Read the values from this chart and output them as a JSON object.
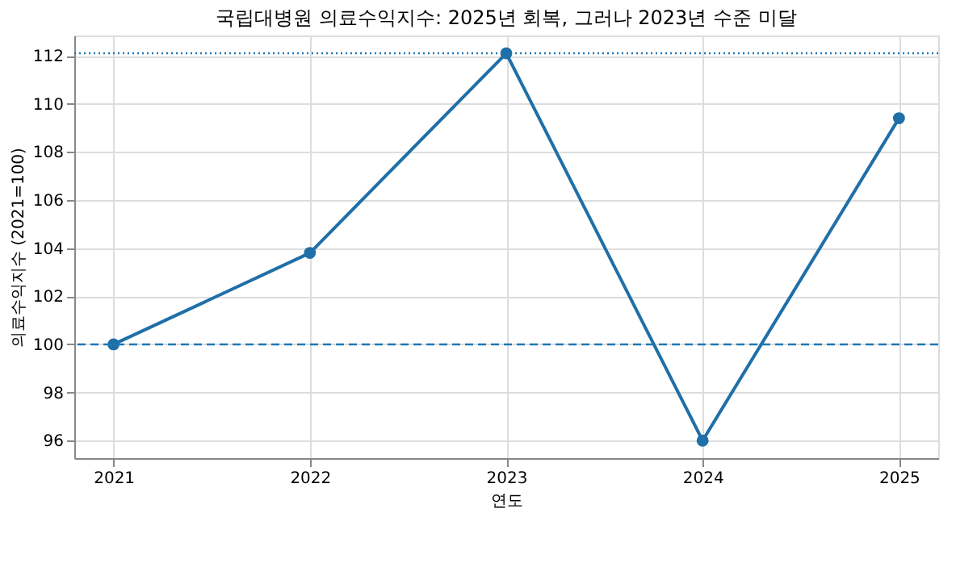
{
  "chart_data": {
    "type": "line",
    "title": "국립대병원 의료수익지수: 2025년 회복, 그러나 2023년 수준 미달",
    "xlabel": "연도",
    "ylabel": "의료수익지수 (2021=100)",
    "x": [
      2021,
      2022,
      2023,
      2024,
      2025
    ],
    "series": [
      {
        "color": "#1f6fa8",
        "values": [
          100,
          103.8,
          112.1,
          96.0,
          109.4
        ]
      }
    ],
    "xlim": [
      2020.8,
      2025.2
    ],
    "xticks": [
      2021,
      2022,
      2023,
      2024,
      2025
    ],
    "ylim": [
      95.27,
      112.84
    ],
    "yticks": [
      96,
      98,
      100,
      102,
      104,
      106,
      108,
      110,
      112
    ],
    "ref_lines": [
      {
        "axis": "y",
        "value": 100,
        "color": "#1f77b4",
        "line_style": "dashed"
      },
      {
        "axis": "y",
        "value": 112.1,
        "color": "#1f77b4",
        "line_style": "dotted"
      }
    ],
    "grid": true,
    "marker": "circle",
    "line_style": "solid"
  }
}
